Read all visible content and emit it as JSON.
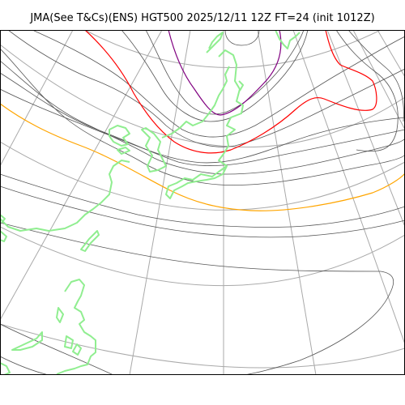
{
  "title": "JMA(See T&Cs)(ENS) HGT500 2025/12/11 12Z FT=24 (init 1012Z)",
  "colors": {
    "background": "#ffffff",
    "graticule": "#a9a9a9",
    "contour": "#555555",
    "coastline": "#90ee90",
    "contour_red": "#ff0000",
    "contour_orange": "#ffa500",
    "contour_purple": "#800080",
    "frame": "#000000"
  }
}
